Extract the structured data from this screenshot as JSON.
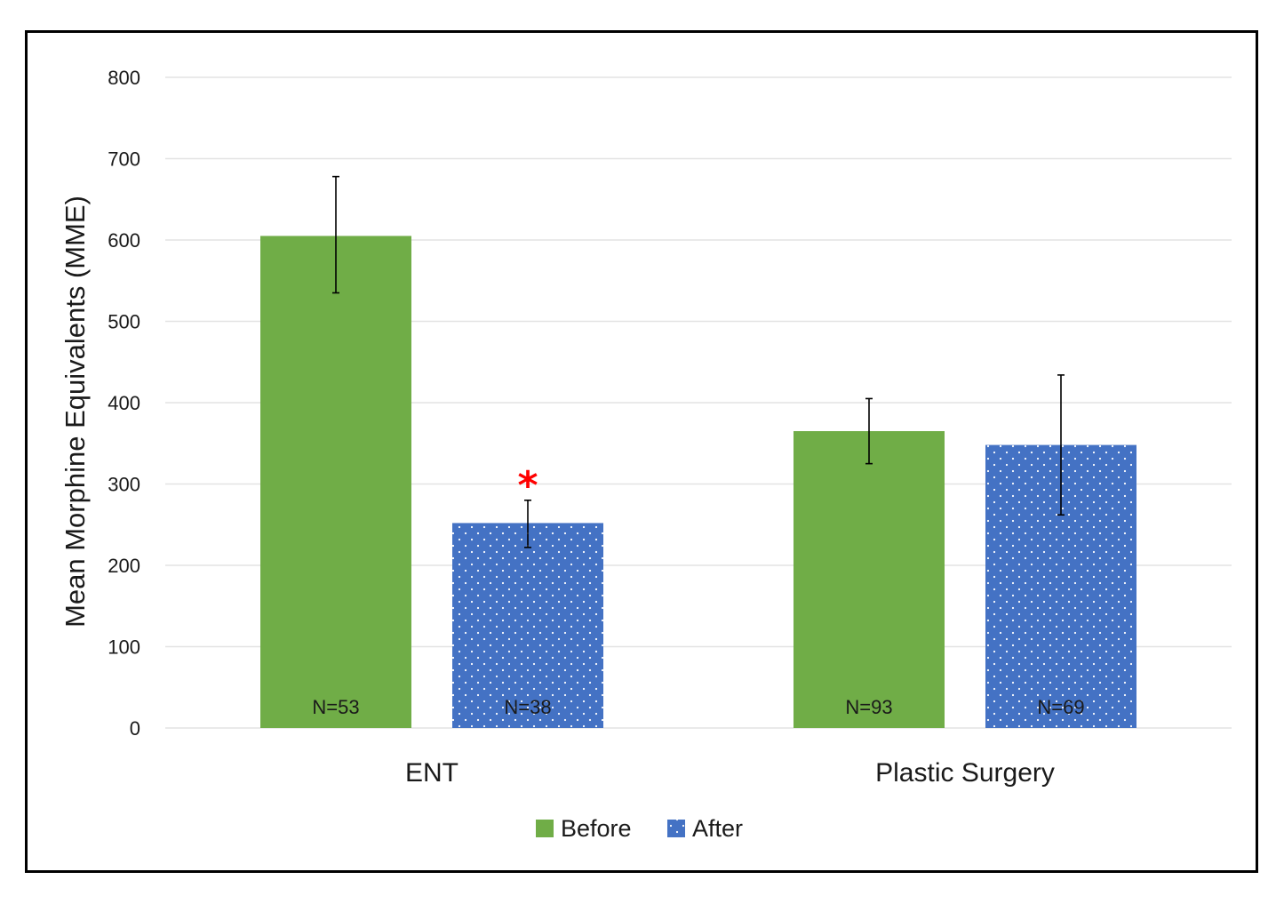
{
  "colors": {
    "before": "#70ad47",
    "after": "#4472c4",
    "grid": "#e3e3e3",
    "significance": "#ff0000",
    "errorbar": "#000000"
  },
  "chart_data": {
    "type": "bar",
    "title": "",
    "xlabel": "",
    "ylabel": "Mean Morphine Equivalents (MME)",
    "ylim": [
      0,
      800
    ],
    "yticks": [
      0,
      100,
      200,
      300,
      400,
      500,
      600,
      700,
      800
    ],
    "grid": true,
    "legend_position": "bottom",
    "categories": [
      "ENT",
      "Plastic Surgery"
    ],
    "series": [
      {
        "name": "Before",
        "values": [
          605,
          365
        ],
        "error_low": [
          535,
          325
        ],
        "error_high": [
          678,
          405
        ],
        "n_labels": [
          "N=53",
          "N=93"
        ],
        "pattern": "solid"
      },
      {
        "name": "After",
        "values": [
          252,
          348
        ],
        "error_low": [
          222,
          262
        ],
        "error_high": [
          280,
          434
        ],
        "n_labels": [
          "N=38",
          "N=69"
        ],
        "pattern": "dots"
      }
    ],
    "annotations": [
      {
        "category": "ENT",
        "series": "After",
        "text": "*",
        "color": "#ff0000"
      }
    ]
  }
}
